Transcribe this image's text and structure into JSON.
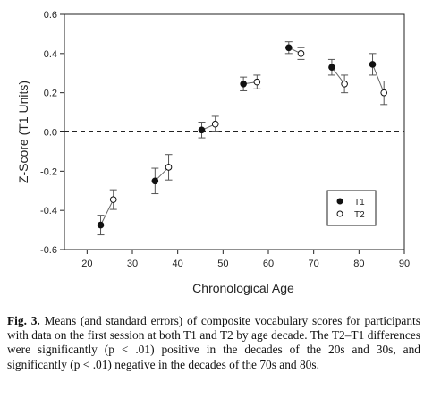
{
  "chart_data": {
    "type": "scatter",
    "ylabel": "Z-Score (T1 Units)",
    "xlabel": "Chronological Age",
    "xlim": [
      15,
      90
    ],
    "ylim": [
      -0.6,
      0.6
    ],
    "xticks": [
      20,
      30,
      40,
      50,
      60,
      70,
      80,
      90
    ],
    "yticks": [
      -0.6,
      -0.4,
      -0.2,
      0.0,
      0.2,
      0.4,
      0.6
    ],
    "ytick_labels": [
      "-0.6",
      "-0.4",
      "-0.2",
      "0.0",
      "0.2",
      "0.4",
      "0.6"
    ],
    "reference_line": 0.0,
    "grid": false,
    "legend_position": "lower-right",
    "series": [
      {
        "name": "T1",
        "marker": "filled-circle",
        "points": [
          {
            "x": 23,
            "y": -0.475,
            "se": 0.05
          },
          {
            "x": 35,
            "y": -0.25,
            "se": 0.065
          },
          {
            "x": 45.3,
            "y": 0.01,
            "se": 0.04
          },
          {
            "x": 54.5,
            "y": 0.245,
            "se": 0.035
          },
          {
            "x": 64.5,
            "y": 0.43,
            "se": 0.03
          },
          {
            "x": 74,
            "y": 0.33,
            "se": 0.04
          },
          {
            "x": 83,
            "y": 0.345,
            "se": 0.055
          }
        ]
      },
      {
        "name": "T2",
        "marker": "open-circle",
        "points": [
          {
            "x": 25.8,
            "y": -0.345,
            "se": 0.05
          },
          {
            "x": 38,
            "y": -0.18,
            "se": 0.065
          },
          {
            "x": 48.3,
            "y": 0.04,
            "se": 0.04
          },
          {
            "x": 57.5,
            "y": 0.255,
            "se": 0.035
          },
          {
            "x": 67.2,
            "y": 0.4,
            "se": 0.03
          },
          {
            "x": 76.8,
            "y": 0.245,
            "se": 0.045
          },
          {
            "x": 85.5,
            "y": 0.2,
            "se": 0.06
          }
        ]
      }
    ],
    "colors": {
      "axis": "#222222",
      "marker": "#111111",
      "errorbar": "#555555",
      "connector": "#666666"
    }
  },
  "caption": {
    "label": "Fig. 3.",
    "text": " Means (and standard errors) of composite vocabulary scores for participants with data on the first session at both T1 and T2 by age decade. The T2–T1 differences were significantly (p < .01) positive in the decades of the 20s and 30s, and significantly (p < .01) negative in the decades of the 70s and 80s."
  }
}
